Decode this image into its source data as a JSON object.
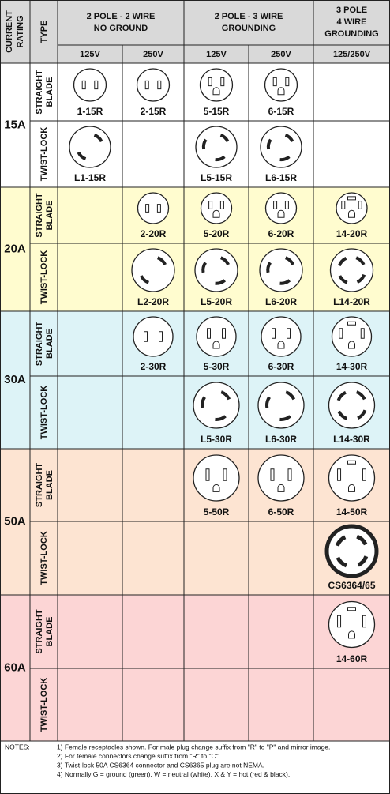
{
  "header": {
    "rating": [
      "CURRENT",
      "RATING"
    ],
    "type": "TYPE",
    "groups": [
      [
        "2 POLE - 2 WIRE",
        "NO GROUND"
      ],
      [
        "2 POLE - 3 WIRE",
        "GROUNDING"
      ],
      [
        "3 POLE",
        "4 WIRE",
        "GROUNDING"
      ]
    ],
    "voltages": [
      "125V",
      "250V",
      "125V",
      "250V",
      "125/250V"
    ]
  },
  "rows": [
    {
      "rating": "15A",
      "types": [
        {
          "type": [
            "STRAIGHT",
            "BLADE"
          ],
          "cells": [
            "1-15R",
            "2-15R",
            "5-15R",
            "6-15R",
            null
          ]
        },
        {
          "type": [
            "TWIST-LOCK"
          ],
          "cells": [
            "L1-15R",
            null,
            "L5-15R",
            "L6-15R",
            null
          ]
        }
      ]
    },
    {
      "rating": "20A",
      "types": [
        {
          "type": [
            "STRAIGHT",
            "BLADE"
          ],
          "cells": [
            null,
            "2-20R",
            "5-20R",
            "6-20R",
            "14-20R"
          ]
        },
        {
          "type": [
            "TWIST-LOCK"
          ],
          "cells": [
            null,
            "L2-20R",
            "L5-20R",
            "L6-20R",
            "L14-20R"
          ]
        }
      ]
    },
    {
      "rating": "30A",
      "types": [
        {
          "type": [
            "STRAIGHT",
            "BLADE"
          ],
          "cells": [
            null,
            "2-30R",
            "5-30R",
            "6-30R",
            "14-30R"
          ]
        },
        {
          "type": [
            "TWIST-LOCK"
          ],
          "cells": [
            null,
            null,
            "L5-30R",
            "L6-30R",
            "L14-30R"
          ]
        }
      ]
    },
    {
      "rating": "50A",
      "types": [
        {
          "type": [
            "STRAIGHT",
            "BLADE"
          ],
          "cells": [
            null,
            null,
            "5-50R",
            "6-50R",
            "14-50R"
          ]
        },
        {
          "type": [
            "TWIST-LOCK"
          ],
          "cells": [
            null,
            null,
            null,
            null,
            "CS6364/65"
          ]
        }
      ]
    },
    {
      "rating": "60A",
      "types": [
        {
          "type": [
            "STRAIGHT",
            "BLADE"
          ],
          "cells": [
            null,
            null,
            null,
            null,
            "14-60R"
          ]
        },
        {
          "type": [
            "TWIST-LOCK"
          ],
          "cells": [
            null,
            null,
            null,
            null,
            null
          ]
        }
      ]
    }
  ],
  "notes": {
    "label": "NOTES:",
    "items": [
      "1)  Female receptacles shown.  For male plug change suffix from \"R\" to \"P\" and mirror image.",
      "2)  For female connectors change suffix from \"R\" to \"C\".",
      "3)  Twist-lock 50A CS6364 connector and CS6365 plug are not NEMA.",
      "4)  Normally G = ground (green), W = neutral (white), X & Y = hot (red & black)."
    ]
  }
}
